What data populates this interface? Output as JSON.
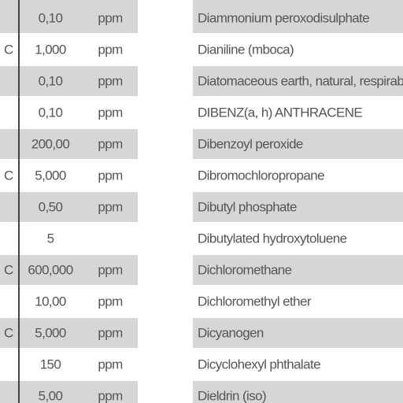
{
  "table": {
    "rows": [
      [
        null,
        "0,10",
        "ppm",
        "Diammonium peroxodisulphate"
      ],
      [
        "C",
        "1,000",
        "ppm",
        "Dianiline (mboca)"
      ],
      [
        null,
        "0,10",
        "ppm",
        "Diatomaceous earth, natural, respirable"
      ],
      [
        null,
        "0,10",
        "ppm",
        "DIBENZ(a, h) ANTHRACENE"
      ],
      [
        null,
        "200,00",
        "ppm",
        "Dibenzoyl peroxide"
      ],
      [
        "C",
        "5,000",
        "ppm",
        "Dibromochloropropane"
      ],
      [
        null,
        "0,50",
        "ppm",
        "Dibutyl phosphate"
      ],
      [
        null,
        "5",
        null,
        "Dibutylated hydroxytoluene"
      ],
      [
        "C",
        "600,000",
        "ppm",
        "Dichloromethane"
      ],
      [
        null,
        "10,00",
        "ppm",
        "Dichloromethyl ether"
      ],
      [
        "C",
        "5,000",
        "ppm",
        "Dicyanogen"
      ],
      [
        null,
        "150",
        "ppm",
        "Dicyclohexyl phthalate"
      ],
      [
        null,
        "5,00",
        "ppm",
        "Dieldrin (iso)"
      ]
    ]
  }
}
